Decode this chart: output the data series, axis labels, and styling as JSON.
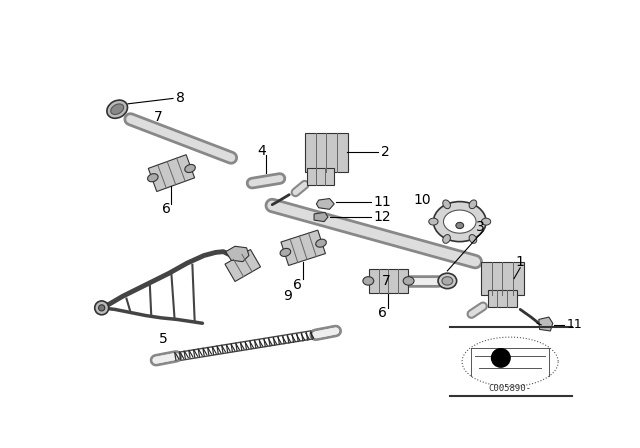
{
  "background_color": "#ffffff",
  "fig_width": 6.4,
  "fig_height": 4.48,
  "dpi": 100,
  "line_color": "#000000",
  "part_color": "#222222",
  "gray_fill": "#cccccc",
  "dark_fill": "#555555"
}
